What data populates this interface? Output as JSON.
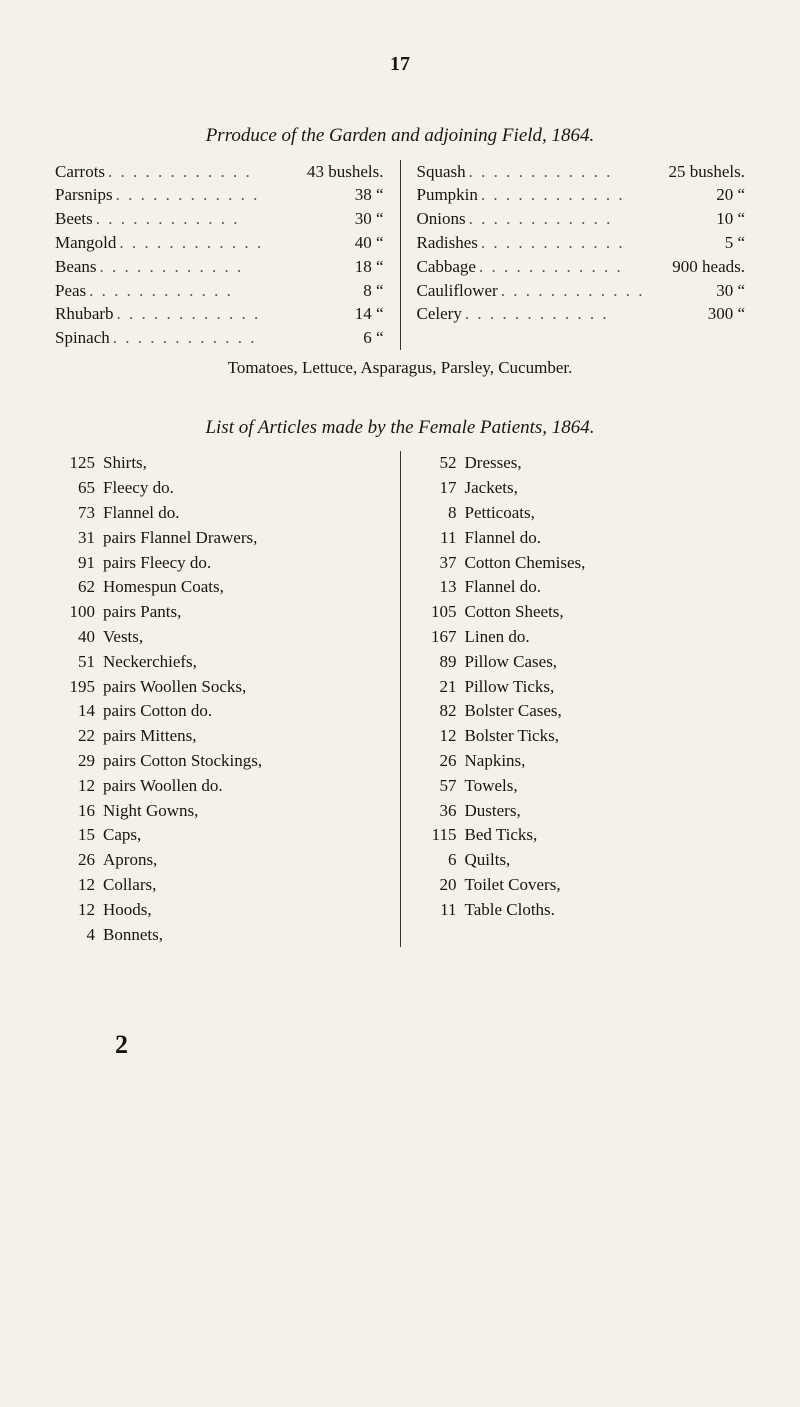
{
  "pageNumber": "17",
  "produce": {
    "title": "Prroduce of the Garden and adjoining Field, 1864.",
    "left": [
      {
        "label": "Carrots",
        "value": "43 bushels."
      },
      {
        "label": "Parsnips",
        "value": "38    “"
      },
      {
        "label": "Beets",
        "value": "30    “"
      },
      {
        "label": "Mangold",
        "value": "40    “"
      },
      {
        "label": "Beans",
        "value": "18    “"
      },
      {
        "label": "Peas",
        "value": "8    “"
      },
      {
        "label": "Rhubarb",
        "value": "14    “"
      },
      {
        "label": "Spinach",
        "value": "6    “"
      }
    ],
    "right": [
      {
        "label": "Squash",
        "value": "25 bushels."
      },
      {
        "label": "Pumpkin",
        "value": "20    “"
      },
      {
        "label": "Onions",
        "value": "10    “"
      },
      {
        "label": "Radishes",
        "value": "5    “"
      },
      {
        "label": "Cabbage",
        "value": "900 heads."
      },
      {
        "label": "Cauliflower",
        "value": "30    “"
      },
      {
        "label": "Celery",
        "value": "300    “"
      }
    ],
    "footnote": "Tomatoes, Lettuce, Asparagus, Parsley, Cucumber."
  },
  "articles": {
    "title": "List of Articles made by the Female Patients, 1864.",
    "left": [
      {
        "qty": "125",
        "item": "Shirts,"
      },
      {
        "qty": "65",
        "item": "Fleecy do."
      },
      {
        "qty": "73",
        "item": "Flannel do."
      },
      {
        "qty": "31",
        "item": "pairs Flannel Drawers,"
      },
      {
        "qty": "91",
        "item": "pairs Fleecy     do."
      },
      {
        "qty": "62",
        "item": "Homespun Coats,"
      },
      {
        "qty": "100",
        "item": "pairs Pants,"
      },
      {
        "qty": "40",
        "item": "Vests,"
      },
      {
        "qty": "51",
        "item": "Neckerchiefs,"
      },
      {
        "qty": "195",
        "item": "pairs Woollen Socks,"
      },
      {
        "qty": "14",
        "item": "pairs Cotton     do."
      },
      {
        "qty": "22",
        "item": "pairs Mittens,"
      },
      {
        "qty": "29",
        "item": "pairs Cotton Stockings,"
      },
      {
        "qty": "12",
        "item": "pairs Woollen do."
      },
      {
        "qty": "16",
        "item": "Night Gowns,"
      },
      {
        "qty": "15",
        "item": "Caps,"
      },
      {
        "qty": "26",
        "item": "Aprons,"
      },
      {
        "qty": "12",
        "item": "Collars,"
      },
      {
        "qty": "12",
        "item": "Hoods,"
      },
      {
        "qty": "4",
        "item": "Bonnets,"
      }
    ],
    "right": [
      {
        "qty": "52",
        "item": "Dresses,"
      },
      {
        "qty": "17",
        "item": "Jackets,"
      },
      {
        "qty": "8",
        "item": "Petticoats,"
      },
      {
        "qty": "11",
        "item": "Flannel do."
      },
      {
        "qty": "37",
        "item": "Cotton Chemises,"
      },
      {
        "qty": "13",
        "item": "Flannel   do."
      },
      {
        "qty": "105",
        "item": "Cotton Sheets,"
      },
      {
        "qty": "167",
        "item": "Linen   do."
      },
      {
        "qty": "89",
        "item": "Pillow Cases,"
      },
      {
        "qty": "21",
        "item": "Pillow Ticks,"
      },
      {
        "qty": "82",
        "item": "Bolster Cases,"
      },
      {
        "qty": "12",
        "item": "Bolster Ticks,"
      },
      {
        "qty": "26",
        "item": "Napkins,"
      },
      {
        "qty": "57",
        "item": "Towels,"
      },
      {
        "qty": "36",
        "item": "Dusters,"
      },
      {
        "qty": "115",
        "item": "Bed Ticks,"
      },
      {
        "qty": "6",
        "item": "Quilts,"
      },
      {
        "qty": "20",
        "item": "Toilet Covers,"
      },
      {
        "qty": "11",
        "item": "Table Cloths."
      }
    ]
  },
  "bigTwo": "2"
}
